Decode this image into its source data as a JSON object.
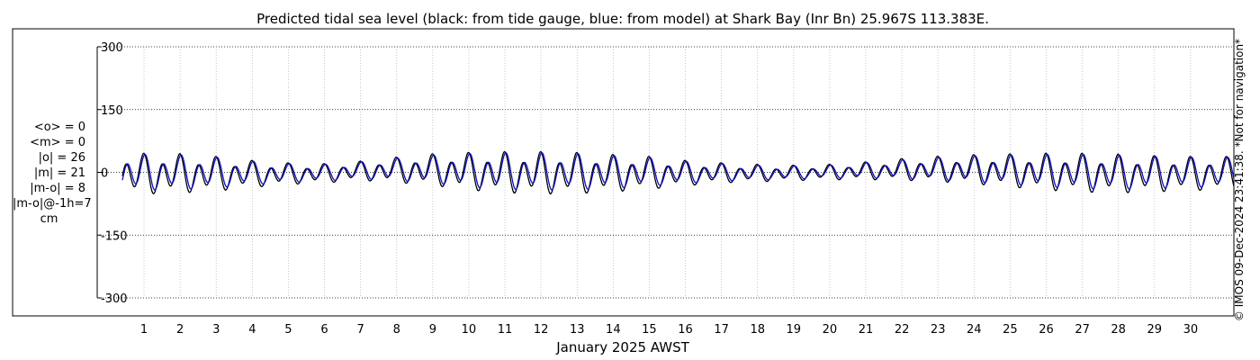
{
  "credit": "© IMOS 09-Dec-2024 23:41:38. *Not for navigation*",
  "stats": {
    "lines": [
      "<o> = 0",
      "<m> = 0",
      "|o| = 26",
      "|m| = 21",
      "|m-o| = 8",
      "|m-o|@-1h=7"
    ],
    "unit": "cm"
  },
  "chart_data": {
    "type": "line",
    "title": "Predicted tidal sea level (black: from tide gauge, blue: from model) at Shark Bay (Inr Bn) 25.967S 113.383E.",
    "xlabel": "January 2025 AWST",
    "ylabel": "",
    "ylim": [
      -300,
      300
    ],
    "xlim": [
      0.4,
      31.2
    ],
    "yticks": [
      300,
      150,
      0,
      -150,
      -300
    ],
    "xticks": [
      1,
      2,
      3,
      4,
      5,
      6,
      7,
      8,
      9,
      10,
      11,
      12,
      13,
      14,
      15,
      16,
      17,
      18,
      19,
      20,
      21,
      22,
      23,
      24,
      25,
      26,
      27,
      28,
      29,
      30
    ],
    "grid": true,
    "series": [
      {
        "name": "tide gauge",
        "color": "#000000",
        "x": [
          1.0,
          2.0,
          3.0,
          4.0,
          5.0,
          6.0,
          7.0,
          8.0,
          9.0,
          10.0,
          11.0,
          12.0,
          13.0,
          14.0,
          15.0,
          16.0,
          17.0,
          18.0,
          19.0,
          20.0,
          21.0,
          22.0,
          23.0,
          24.0,
          25.0,
          26.0,
          27.0,
          28.0,
          29.0,
          30.0
        ],
        "high": [
          48,
          47,
          40,
          30,
          24,
          22,
          28,
          38,
          46,
          50,
          52,
          52,
          50,
          45,
          40,
          30,
          24,
          20,
          18,
          20,
          26,
          34,
          40,
          44,
          46,
          48,
          48,
          46,
          42,
          40
        ],
        "low": [
          -58,
          -55,
          -50,
          -40,
          -32,
          -28,
          -22,
          -28,
          -36,
          -48,
          -55,
          -58,
          -57,
          -52,
          -45,
          -36,
          -28,
          -25,
          -22,
          -20,
          -20,
          -22,
          -26,
          -32,
          -40,
          -48,
          -53,
          -55,
          -52,
          -48
        ]
      },
      {
        "name": "model",
        "color": "#1010c8",
        "x": [
          1.0,
          2.0,
          3.0,
          4.0,
          5.0,
          6.0,
          7.0,
          8.0,
          9.0,
          10.0,
          11.0,
          12.0,
          13.0,
          14.0,
          15.0,
          16.0,
          17.0,
          18.0,
          19.0,
          20.0,
          21.0,
          22.0,
          23.0,
          24.0,
          25.0,
          26.0,
          27.0,
          28.0,
          29.0,
          30.0
        ],
        "high": [
          45,
          44,
          38,
          28,
          22,
          20,
          26,
          35,
          43,
          47,
          49,
          49,
          47,
          42,
          37,
          28,
          22,
          18,
          16,
          18,
          24,
          31,
          37,
          41,
          43,
          45,
          45,
          43,
          40,
          38
        ],
        "low": [
          -48,
          -46,
          -42,
          -33,
          -27,
          -23,
          -18,
          -23,
          -30,
          -40,
          -46,
          -48,
          -47,
          -43,
          -37,
          -30,
          -23,
          -21,
          -18,
          -16,
          -16,
          -18,
          -22,
          -27,
          -33,
          -40,
          -44,
          -46,
          -43,
          -40
        ]
      }
    ]
  }
}
